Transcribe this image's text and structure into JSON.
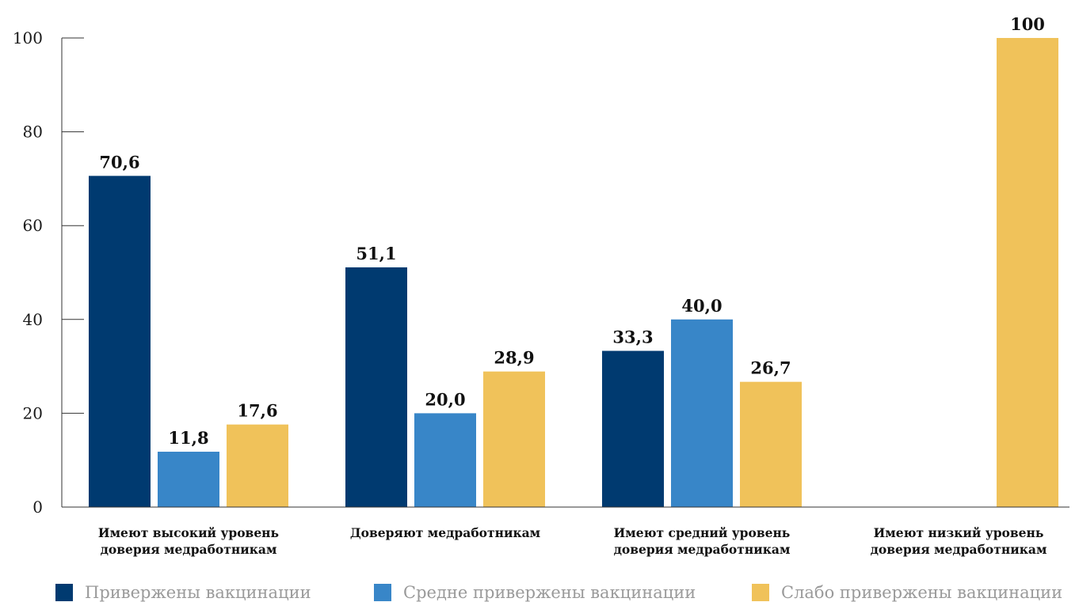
{
  "chart_data": {
    "type": "bar",
    "title": "",
    "xlabel": "",
    "ylabel": "",
    "ylim": [
      0,
      100
    ],
    "yticks": [
      0,
      20,
      40,
      60,
      80,
      100
    ],
    "grid": false,
    "legend_position": "bottom",
    "categories": [
      [
        "Имеют высокий уровень",
        "доверия медработникам"
      ],
      [
        "Доверяют медработникам"
      ],
      [
        "Имеют средний уровень",
        "доверия медработникам"
      ],
      [
        "Имеют низкий уровень",
        "доверия медработникам"
      ]
    ],
    "series": [
      {
        "name": "Привержены вакцинации",
        "color": "#003a70",
        "values": [
          70.6,
          51.1,
          33.3,
          null
        ],
        "labels": [
          "70,6",
          "51,1",
          "33,3",
          ""
        ]
      },
      {
        "name": "Средне привержены вакцинации",
        "color": "#3886c8",
        "values": [
          11.8,
          20.0,
          40.0,
          null
        ],
        "labels": [
          "11,8",
          "20,0",
          "40,0",
          ""
        ]
      },
      {
        "name": "Слабо привержены вакцинации",
        "color": "#f0c25a",
        "values": [
          17.6,
          28.9,
          26.7,
          100
        ],
        "labels": [
          "17,6",
          "28,9",
          "26,7",
          "100"
        ]
      }
    ]
  }
}
